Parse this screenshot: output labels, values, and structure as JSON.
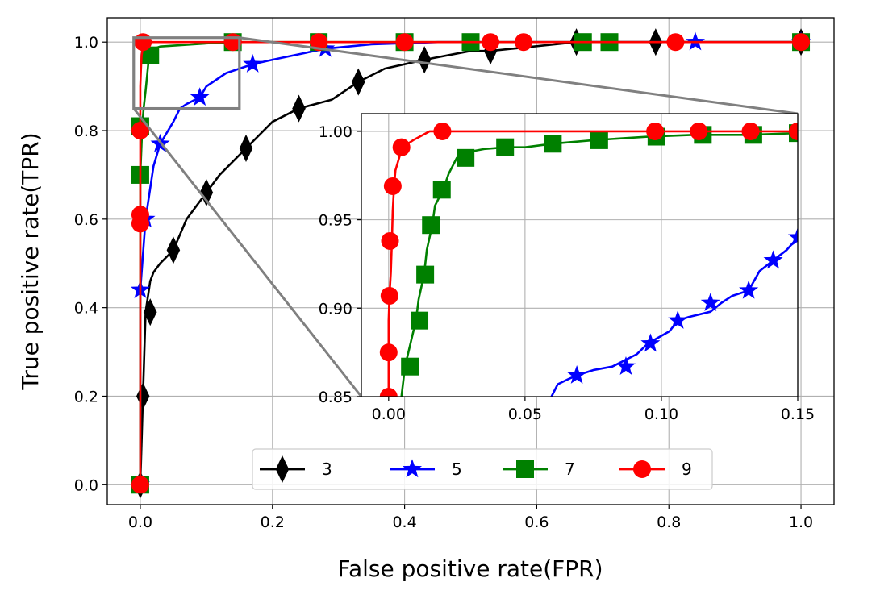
{
  "chart_data": {
    "type": "line",
    "xlabel": "False positive rate(FPR)",
    "ylabel": "True positive rate(TPR)",
    "xlim": [
      -0.05,
      1.05
    ],
    "ylim": [
      -0.045,
      1.055
    ],
    "xticks": [
      "0.0",
      "0.2",
      "0.4",
      "0.6",
      "0.8",
      "1.0"
    ],
    "yticks": [
      "0.0",
      "0.2",
      "0.4",
      "0.6",
      "0.8",
      "1.0"
    ],
    "grid": true,
    "legend_location": "lower center",
    "series": [
      {
        "name": "3",
        "color": "#000000",
        "marker": "thin-diamond",
        "x": [
          0.0,
          0.004,
          0.008,
          0.015,
          0.02,
          0.03,
          0.05,
          0.07,
          0.1,
          0.12,
          0.16,
          0.2,
          0.24,
          0.29,
          0.33,
          0.37,
          0.43,
          0.5,
          0.53,
          0.66,
          0.78,
          1.0
        ],
        "y": [
          0.0,
          0.2,
          0.39,
          0.46,
          0.48,
          0.5,
          0.53,
          0.6,
          0.66,
          0.7,
          0.76,
          0.82,
          0.85,
          0.87,
          0.91,
          0.94,
          0.96,
          0.98,
          0.98,
          1.0,
          1.0,
          1.0
        ],
        "marker_x": [
          0.0,
          0.004,
          0.015,
          0.05,
          0.1,
          0.16,
          0.24,
          0.33,
          0.43,
          0.53,
          0.66,
          0.78,
          1.0
        ],
        "marker_y": [
          0.0,
          0.2,
          0.39,
          0.53,
          0.66,
          0.76,
          0.85,
          0.91,
          0.96,
          0.98,
          1.0,
          1.0,
          1.0
        ]
      },
      {
        "name": "5",
        "color": "#0000ff",
        "marker": "star",
        "x": [
          0.0,
          0.0,
          0.008,
          0.02,
          0.03,
          0.05,
          0.06,
          0.07,
          0.09,
          0.1,
          0.13,
          0.15,
          0.17,
          0.2,
          0.28,
          0.35,
          0.45,
          0.6,
          0.8,
          1.0
        ],
        "y": [
          0.0,
          0.44,
          0.6,
          0.72,
          0.77,
          0.82,
          0.85,
          0.86,
          0.875,
          0.9,
          0.93,
          0.94,
          0.95,
          0.96,
          0.985,
          0.995,
          1.0,
          1.0,
          1.0,
          1.0
        ],
        "marker_x": [
          0.0,
          0.0,
          0.008,
          0.03,
          0.09,
          0.17,
          0.28,
          0.84,
          1.0
        ],
        "marker_y": [
          0.0,
          0.44,
          0.6,
          0.77,
          0.875,
          0.95,
          0.985,
          1.0,
          1.0
        ]
      },
      {
        "name": "7",
        "color": "#008000",
        "marker": "square",
        "x": [
          0.0,
          0.0,
          0.003,
          0.005,
          0.008,
          0.01,
          0.012,
          0.015,
          0.02,
          0.03,
          0.06,
          0.1,
          0.14,
          0.27,
          0.4,
          0.5,
          0.67,
          0.71,
          1.0
        ],
        "y": [
          0.0,
          0.7,
          0.81,
          0.85,
          0.89,
          0.92,
          0.95,
          0.97,
          0.985,
          0.99,
          0.993,
          0.997,
          1.0,
          1.0,
          1.0,
          1.0,
          1.0,
          1.0,
          1.0
        ],
        "marker_x": [
          0.0,
          0.0,
          0.0,
          0.015,
          0.14,
          0.27,
          0.4,
          0.5,
          0.67,
          0.71,
          1.0
        ],
        "marker_y": [
          0.0,
          0.7,
          0.81,
          0.97,
          1.0,
          1.0,
          1.0,
          1.0,
          1.0,
          1.0,
          1.0
        ]
      },
      {
        "name": "9",
        "color": "#ff0000",
        "marker": "circle",
        "x": [
          0.0,
          0.0,
          0.0,
          0.0,
          0.0,
          0.0,
          0.001,
          0.002,
          0.004,
          0.01,
          0.02,
          0.14,
          0.27,
          0.4,
          0.53,
          0.58,
          0.81,
          1.0
        ],
        "y": [
          0.0,
          0.59,
          0.61,
          0.8,
          0.85,
          0.9,
          0.94,
          0.97,
          0.99,
          1.0,
          1.0,
          1.0,
          1.0,
          1.0,
          1.0,
          1.0,
          1.0,
          1.0
        ],
        "marker_x": [
          0.0,
          0.0,
          0.0,
          0.0,
          0.004,
          0.14,
          0.27,
          0.4,
          0.53,
          0.58,
          0.81,
          1.0
        ],
        "marker_y": [
          0.0,
          0.59,
          0.61,
          0.8,
          1.0,
          1.0,
          1.0,
          1.0,
          1.0,
          1.0,
          1.0,
          1.0
        ]
      }
    ],
    "zoom_region": {
      "x": [
        -0.01,
        0.15
      ],
      "y": [
        0.85,
        1.01
      ],
      "color": "#808080"
    },
    "inset": {
      "xlim": [
        -0.01,
        0.15
      ],
      "ylim": [
        0.85,
        1.01
      ],
      "xticks": [
        "0.00",
        "0.05",
        "0.10",
        "0.15"
      ],
      "yticks": [
        "0.85",
        "0.90",
        "0.95",
        "1.00"
      ],
      "grid": true,
      "series": [
        {
          "name": "5",
          "color": "#0000ff",
          "marker": "star",
          "x": [
            0.0597,
            0.062,
            0.066,
            0.069,
            0.075,
            0.082,
            0.091,
            0.095,
            0.103,
            0.106,
            0.11,
            0.118,
            0.122,
            0.126,
            0.132,
            0.136,
            0.141,
            0.146,
            0.15
          ],
          "y": [
            0.85,
            0.857,
            0.86,
            0.862,
            0.865,
            0.867,
            0.874,
            0.88,
            0.887,
            0.893,
            0.895,
            0.898,
            0.903,
            0.907,
            0.91,
            0.921,
            0.927,
            0.933,
            0.94
          ],
          "marker_x": [
            0.069,
            0.087,
            0.096,
            0.106,
            0.118,
            0.132,
            0.141,
            0.15
          ],
          "marker_y": [
            0.862,
            0.867,
            0.88,
            0.893,
            0.903,
            0.91,
            0.927,
            0.94
          ]
        },
        {
          "name": "7",
          "color": "#008000",
          "marker": "square",
          "x": [
            0.0047,
            0.006,
            0.008,
            0.01,
            0.011,
            0.013,
            0.014,
            0.016,
            0.017,
            0.02,
            0.022,
            0.025,
            0.028,
            0.035,
            0.043,
            0.05,
            0.06,
            0.075,
            0.095,
            0.112,
            0.132,
            0.15
          ],
          "y": [
            0.85,
            0.867,
            0.88,
            0.893,
            0.905,
            0.919,
            0.933,
            0.947,
            0.958,
            0.967,
            0.976,
            0.985,
            0.988,
            0.99,
            0.991,
            0.991,
            0.993,
            0.995,
            0.997,
            0.998,
            0.998,
            0.999
          ],
          "marker_x": [
            0.0078,
            0.0113,
            0.0134,
            0.0155,
            0.0195,
            0.0282,
            0.0427,
            0.0602,
            0.0772,
            0.0982,
            0.1152,
            0.1337,
            0.15
          ],
          "marker_y": [
            0.867,
            0.893,
            0.919,
            0.947,
            0.967,
            0.985,
            0.991,
            0.993,
            0.995,
            0.997,
            0.998,
            0.998,
            0.999
          ]
        },
        {
          "name": "9",
          "color": "#ff0000",
          "marker": "circle",
          "x": [
            0.0,
            0.0,
            0.0,
            0.0,
            0.0003,
            0.0008,
            0.0012,
            0.0015,
            0.002,
            0.0025,
            0.005,
            0.009,
            0.015,
            0.02,
            0.05,
            0.097,
            0.113,
            0.132,
            0.15
          ],
          "y": [
            0.85,
            0.86,
            0.875,
            0.893,
            0.907,
            0.92,
            0.938,
            0.955,
            0.969,
            0.978,
            0.991,
            0.995,
            1.0,
            1.0,
            1.0,
            1.0,
            1.0,
            1.0,
            1.0
          ],
          "marker_x": [
            0.0,
            0.0,
            0.0003,
            0.0005,
            0.0015,
            0.0047,
            0.0197,
            0.0977,
            0.1137,
            0.1327,
            0.15
          ],
          "marker_y": [
            0.85,
            0.875,
            0.907,
            0.938,
            0.969,
            0.991,
            1.0,
            1.0,
            1.0,
            1.0,
            1.0
          ]
        }
      ]
    }
  }
}
